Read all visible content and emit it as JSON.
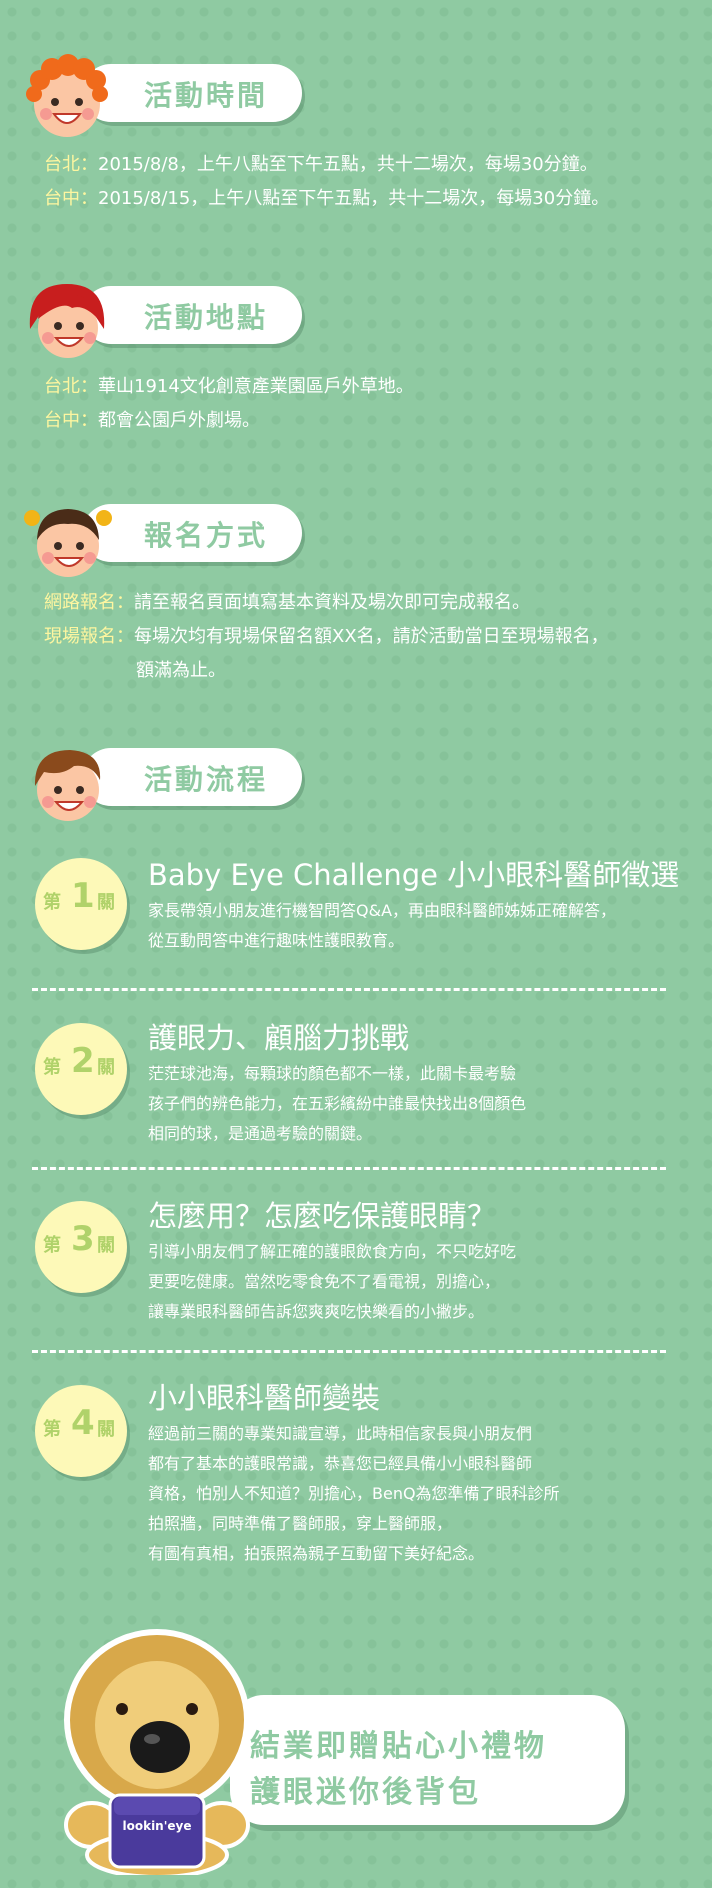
{
  "colors": {
    "background": "#8fcaa2",
    "label_yellow": "#fdf6a0",
    "badge_bg": "#fdf9b8",
    "title_green": "#8fcaa2"
  },
  "sections": [
    {
      "title": "活動時間",
      "icon": "curly-orange-hair-kid-icon",
      "rows": [
        {
          "label": "台北",
          "text": "2015/8/8，上午八點至下午五點，共十二場次，每場30分鐘。"
        },
        {
          "label": "台中",
          "text": "2015/8/15，上午八點至下午五點，共十二場次，每場30分鐘。"
        }
      ]
    },
    {
      "title": "活動地點",
      "icon": "red-hair-girl-icon",
      "rows": [
        {
          "label": "台北",
          "text": "華山1914文化創意產業園區戶外草地。"
        },
        {
          "label": "台中",
          "text": "都會公園戶外劇場。"
        }
      ]
    },
    {
      "title": "報名方式",
      "icon": "pigtail-girl-icon",
      "rows": [
        {
          "label": "網路報名",
          "text": "請至報名頁面填寫基本資料及場次即可完成報名。"
        },
        {
          "label": "現場報名",
          "text": "每場次均有現場保留名額XX名，請於活動當日至現場報名，",
          "text2": "額滿為止。"
        }
      ]
    },
    {
      "title": "活動流程",
      "icon": "brown-hair-boy-icon"
    }
  ],
  "levels": [
    {
      "b1": "第",
      "n": "1",
      "b2": "關",
      "title": "Baby Eye Challenge 小小眼科醫師徵選",
      "lines": [
        "家長帶領小朋友進行機智問答Q&A，再由眼科醫師姊姊正確解答，",
        "從互動問答中進行趣味性護眼教育。"
      ]
    },
    {
      "b1": "第",
      "n": "2",
      "b2": "關",
      "title": "護眼力、顧腦力挑戰",
      "lines": [
        "茫茫球池海，每顆球的顏色都不一樣，此關卡最考驗",
        "孩子們的辨色能力，在五彩繽紛中誰最快找出8個顏色",
        "相同的球，是通過考驗的關鍵。"
      ]
    },
    {
      "b1": "第",
      "n": "3",
      "b2": "關",
      "title": "怎麼用？怎麼吃保護眼睛？",
      "lines": [
        "引導小朋友們了解正確的護眼飲食方向，不只吃好吃",
        "更要吃健康。當然吃零食免不了看電視，別擔心，",
        "讓專業眼科醫師告訴您爽爽吃快樂看的小撇步。"
      ]
    },
    {
      "b1": "第",
      "n": "4",
      "b2": "關",
      "title": "小小眼科醫師變裝",
      "lines": [
        "經過前三關的專業知識宣導，此時相信家長與小朋友們",
        "都有了基本的護眼常識，恭喜您已經具備小小眼科醫師",
        "資格，怕別人不知道？別擔心，BenQ為您準備了眼科診所",
        "拍照牆，同時準備了醫師服，穿上醫師服，",
        "有圖有真相，拍張照為親子互動留下美好紀念。"
      ]
    }
  ],
  "gift": {
    "line1": "結業即贈貼心小禮物",
    "line2": "護眼迷你後背包",
    "bag_text": "lookin'eye",
    "icon": "lion-plush-with-backpack-icon"
  }
}
